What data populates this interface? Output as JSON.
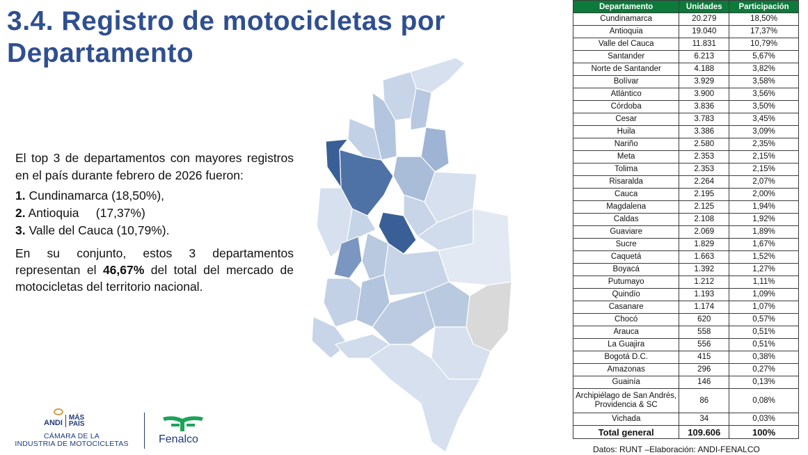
{
  "slide": {
    "title_line1": "3.4. Registro de motocicletas por",
    "title_line2": "Departamento"
  },
  "text": {
    "intro": "El top 3 de departamentos con mayores registros en el país durante febrero de 2026 fueron:",
    "top3": [
      {
        "num": "1.",
        "label": " Cundinamarca (18,50%),"
      },
      {
        "num": "2.",
        "label": " Antioquia     (17,37%)"
      },
      {
        "num": "3.",
        "label": " Valle del Cauca (10,79%)."
      }
    ],
    "summary_pre": "En su conjunto, estos 3 departamentos representan el ",
    "summary_bold": "46,67%",
    "summary_post": " del total del mercado de motocicletas del territorio nacional."
  },
  "table": {
    "headers": [
      "Departamento",
      "Unidades",
      "Participación"
    ],
    "rows": [
      [
        "Cundinamarca",
        "20.279",
        "18,50%"
      ],
      [
        "Antioquia",
        "19.040",
        "17,37%"
      ],
      [
        "Valle del Cauca",
        "11.831",
        "10,79%"
      ],
      [
        "Santander",
        "6.213",
        "5,67%"
      ],
      [
        "Norte de Santander",
        "4.188",
        "3,82%"
      ],
      [
        "Bolívar",
        "3.929",
        "3,58%"
      ],
      [
        "Atlántico",
        "3.900",
        "3,56%"
      ],
      [
        "Córdoba",
        "3.836",
        "3,50%"
      ],
      [
        "Cesar",
        "3.783",
        "3,45%"
      ],
      [
        "Huila",
        "3.386",
        "3,09%"
      ],
      [
        "Nariño",
        "2.580",
        "2,35%"
      ],
      [
        "Meta",
        "2.353",
        "2,15%"
      ],
      [
        "Tolima",
        "2.353",
        "2,15%"
      ],
      [
        "Risaralda",
        "2.264",
        "2,07%"
      ],
      [
        "Cauca",
        "2.195",
        "2,00%"
      ],
      [
        "Magdalena",
        "2.125",
        "1,94%"
      ],
      [
        "Caldas",
        "2.108",
        "1,92%"
      ],
      [
        "Guaviare",
        "2.069",
        "1,89%"
      ],
      [
        "Sucre",
        "1.829",
        "1,67%"
      ],
      [
        "Caquetá",
        "1.663",
        "1,52%"
      ],
      [
        "Boyacá",
        "1.392",
        "1,27%"
      ],
      [
        "Putumayo",
        "1.212",
        "1,11%"
      ],
      [
        "Quindío",
        "1.193",
        "1,09%"
      ],
      [
        "Casanare",
        "1.174",
        "1,07%"
      ],
      [
        "Chocó",
        "620",
        "0,57%"
      ],
      [
        "Arauca",
        "558",
        "0,51%"
      ],
      [
        "La Guajira",
        "556",
        "0,51%"
      ],
      [
        "Bogotá D.C.",
        "415",
        "0,38%"
      ],
      [
        "Amazonas",
        "296",
        "0,27%"
      ],
      [
        "Guainía",
        "146",
        "0,13%"
      ],
      [
        "Archipiélago de San Andrés, Providencia & SC",
        "86",
        "0,08%"
      ],
      [
        "Vichada",
        "34",
        "0,03%"
      ]
    ],
    "total": [
      "Total general",
      "109.606",
      "100%"
    ]
  },
  "source": "Datos: RUNT –Elaboración: ANDI-FENALCO",
  "logos": {
    "andi": "ANDI",
    "mas_pais": "MÁS PAÍS",
    "camara_line1": "CÁMARA DE LA",
    "camara_line2": "INDUSTRIA DE MOTOCICLETAS",
    "fenalco": "Fenalco"
  },
  "colors": {
    "title": "#2f4f8f",
    "table_header": "#0c7a3a",
    "map_dark": "#3a5f97",
    "map_mid": "#a9bcd8",
    "map_light": "#d6e0ee",
    "map_grey": "#d9d9d9"
  }
}
